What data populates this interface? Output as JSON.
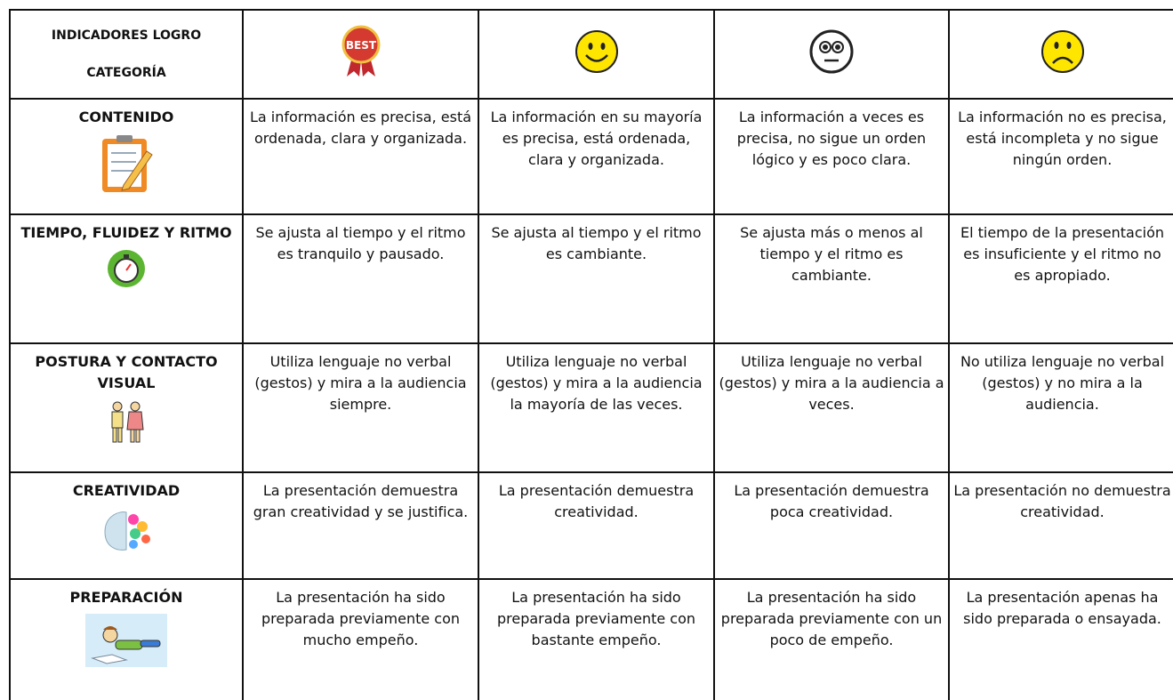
{
  "header": {
    "indicator": "INDICADORES LOGRO",
    "category": "CATEGORÍA"
  },
  "rows": [
    [
      "CONTENIDO",
      "La información es precisa, está ordenada, clara y organizada.",
      "La información en su mayoría es precisa, está ordenada, clara y organizada.",
      "La información a veces es precisa, no sigue un orden lógico y es poco clara.",
      "La información no es precisa, está incompleta y no sigue ningún orden."
    ],
    [
      "TIEMPO, FLUIDEZ Y RITMO",
      "Se ajusta al tiempo y el ritmo es tranquilo y pausado.",
      "Se ajusta al tiempo y el ritmo es cambiante.",
      "Se ajusta más o menos al tiempo y el ritmo es cambiante.",
      "El tiempo de la presentación es insuficiente y el ritmo no es apropiado."
    ],
    [
      "POSTURA Y CONTACTO VISUAL",
      "Utiliza lenguaje no verbal (gestos) y mira a la audiencia siempre.",
      "Utiliza lenguaje no verbal (gestos) y mira a la audiencia la mayoría de las veces.",
      "Utiliza lenguaje no verbal (gestos) y mira a la audiencia a veces.",
      "No utiliza lenguaje no verbal (gestos) y no mira a la audiencia."
    ],
    [
      "CREATIVIDAD",
      "La presentación demuestra gran creatividad y se justifica.",
      "La presentación demuestra creatividad.",
      "La presentación demuestra poca creatividad.",
      "La presentación no demuestra creatividad."
    ],
    [
      "PREPARACIÓN",
      "La presentación ha sido preparada previamente con mucho empeño.",
      "La presentación ha sido preparada previamente con bastante empeño.",
      "La presentación ha sido preparada previamente con un poco de empeño.",
      "La presentación apenas ha sido preparada o ensayada."
    ]
  ]
}
